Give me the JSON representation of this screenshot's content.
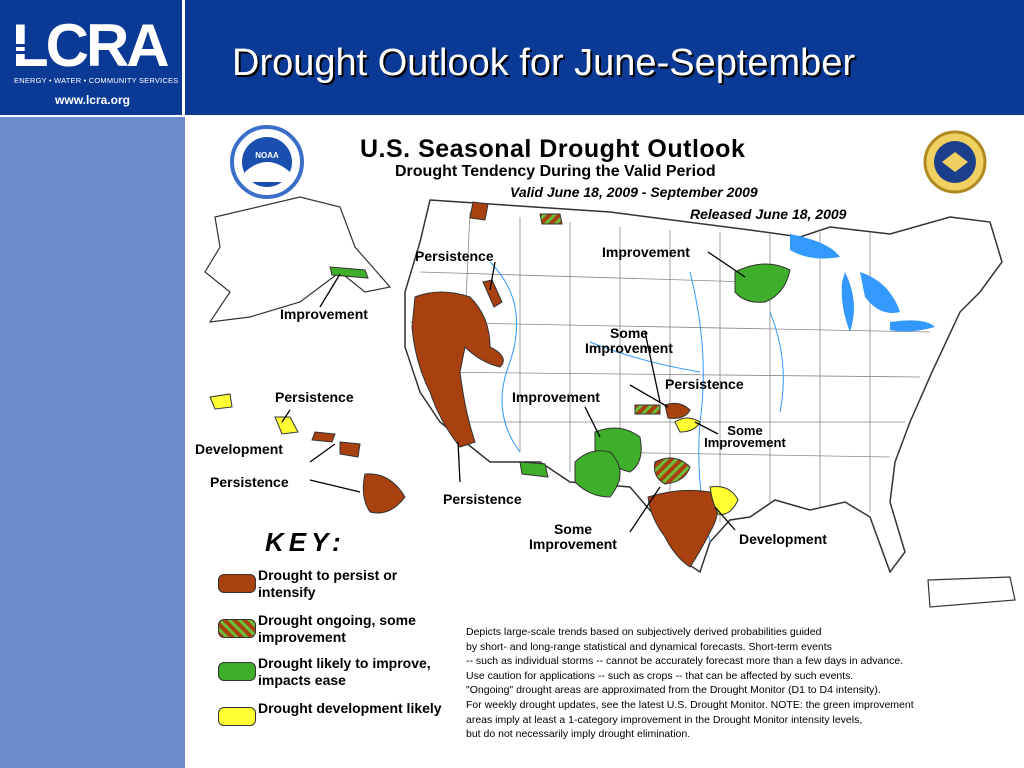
{
  "header": {
    "title": "Drought Outlook for June-September",
    "logo_text": "LCRA",
    "logo_tagline": "ENERGY • WATER • COMMUNITY SERVICES",
    "url": "www.lcra.org"
  },
  "map": {
    "title": "U.S. Seasonal Drought Outlook",
    "subtitle": "Drought Tendency During the Valid Period",
    "valid": "Valid June 18, 2009 - September 2009",
    "released": "Released June 18, 2009",
    "noaa_badge": "NOAA",
    "region_labels": {
      "persistence_nw": "Persistence",
      "improvement_north": "Improvement",
      "some_improvement_central": "Some Improvement",
      "persistence_central": "Persistence",
      "improvement_sw": "Improvement",
      "some_improvement_east": "Some Improvement",
      "persistence_sw": "Persistence",
      "some_improvement_south": "Some Improvement",
      "development_tx": "Development",
      "improvement_ak": "Improvement",
      "persistence_hi_1": "Persistence",
      "development_hi": "Development",
      "persistence_hi_2": "Persistence"
    }
  },
  "key": {
    "title": "KEY:",
    "items": [
      {
        "label": "Drought to persist or intensify",
        "color": "#a8400f"
      },
      {
        "label": "Drought ongoing, some improvement",
        "color": "#a8400f",
        "hatch": "#6bbf3a"
      },
      {
        "label": "Drought likely to improve, impacts ease",
        "color": "#3fae2a"
      },
      {
        "label": "Drought development likely",
        "color": "#ffff33"
      }
    ]
  },
  "disclaimer": [
    "Depicts large-scale trends based on subjectively derived probabilities guided",
    "by short- and long-range statistical and dynamical forecasts. Short-term events",
    "-- such as individual storms -- cannot be accurately forecast more than a few days in advance.",
    "Use caution for applications -- such as crops -- that can be affected by such events.",
    "\"Ongoing\" drought areas are approximated from the Drought Monitor (D1 to D4 intensity).",
    "For weekly drought updates, see the latest U.S. Drought Monitor. NOTE: the green improvement",
    "areas imply at least a 1-category improvement in the Drought Monitor intensity levels,",
    "but do not necessarily imply drought elimination."
  ],
  "colors": {
    "header_bg": "#0b3a96",
    "sidebar_bg": "#6b8ccc",
    "persist": "#a8400f",
    "improve": "#3fae2a",
    "develop": "#ffff33",
    "water": "#3399ff"
  }
}
